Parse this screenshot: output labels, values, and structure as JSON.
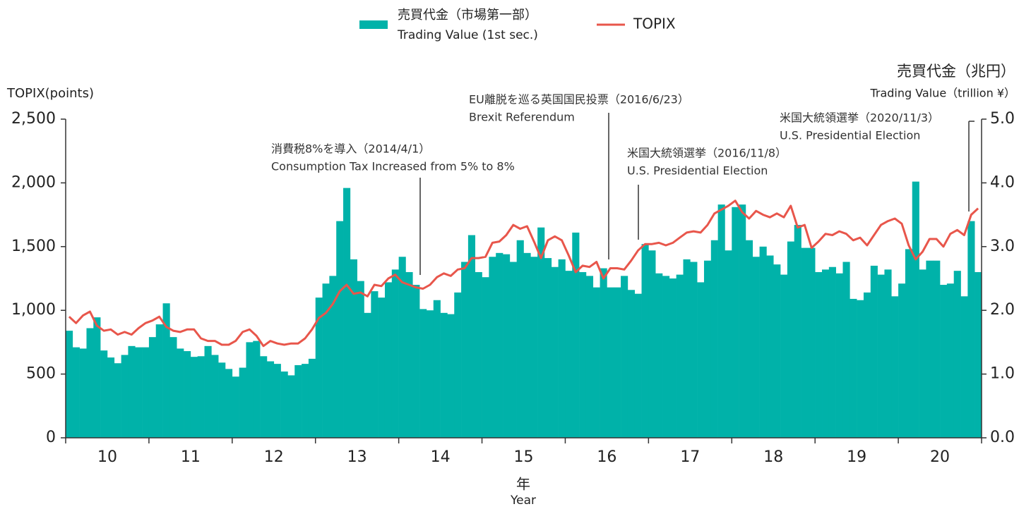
{
  "chart_data": {
    "type": "bar-line",
    "xlabel": "年",
    "xlabel_en": "Year",
    "ylabel": "TOPIX(points)",
    "y2label": "売買代金（兆円）",
    "y2label_en": "Trading Value（trillion ¥）",
    "years": [
      "10",
      "11",
      "12",
      "13",
      "14",
      "15",
      "16",
      "17",
      "18",
      "19",
      "20"
    ],
    "ylim": [
      0,
      2500
    ],
    "yticks": [
      0,
      500,
      {
        "value": 1000,
        "label": "1,000"
      },
      {
        "value": 1500,
        "label": "1,500"
      },
      {
        "value": 2000,
        "label": "2,000"
      },
      {
        "value": 2500,
        "label": "2,500"
      }
    ],
    "y2lim": [
      0,
      5
    ],
    "y2ticks": [
      {
        "value": 0,
        "label": "0.0"
      },
      {
        "value": 1,
        "label": "1.0"
      },
      {
        "value": 2,
        "label": "2.0"
      },
      {
        "value": 3,
        "label": "3.0"
      },
      {
        "value": 4,
        "label": "4.0"
      },
      {
        "value": 5,
        "label": "5.0"
      }
    ],
    "series": [
      {
        "name": "売買代金（市場第一部）",
        "name_en": "Trading Value (1st sec.)",
        "kind": "bar",
        "axis": "y2",
        "color": "#00b2a9",
        "values": [
          1.68,
          1.42,
          1.4,
          1.72,
          1.89,
          1.37,
          1.26,
          1.17,
          1.3,
          1.44,
          1.42,
          1.42,
          1.58,
          1.78,
          2.11,
          1.58,
          1.4,
          1.36,
          1.27,
          1.28,
          1.44,
          1.3,
          1.18,
          1.08,
          0.96,
          1.1,
          1.5,
          1.52,
          1.28,
          1.2,
          1.16,
          1.04,
          0.98,
          1.14,
          1.16,
          1.24,
          2.2,
          2.42,
          2.54,
          3.4,
          3.92,
          2.8,
          2.46,
          1.96,
          2.3,
          2.2,
          2.44,
          2.64,
          2.84,
          2.6,
          2.4,
          2.02,
          2.0,
          2.16,
          1.96,
          1.94,
          2.28,
          2.76,
          3.18,
          2.6,
          2.52,
          2.84,
          2.9,
          2.88,
          2.76,
          3.1,
          2.9,
          2.84,
          3.3,
          2.82,
          2.68,
          2.8,
          2.62,
          3.22,
          2.6,
          2.54,
          2.36,
          2.66,
          2.36,
          2.36,
          2.54,
          2.32,
          2.26,
          3.04,
          2.94,
          2.58,
          2.54,
          2.5,
          2.56,
          2.8,
          2.76,
          2.44,
          2.78,
          3.1,
          3.66,
          2.94,
          3.62,
          3.66,
          3.1,
          2.84,
          3.0,
          2.86,
          2.72,
          2.56,
          3.08,
          3.34,
          2.98,
          2.98,
          2.6,
          2.64,
          2.68,
          2.58,
          2.76,
          2.18,
          2.16,
          2.28,
          2.7,
          2.56,
          2.64,
          2.22,
          2.42,
          2.96,
          4.02,
          2.64,
          2.78,
          2.78,
          2.4,
          2.42,
          2.62,
          2.22,
          3.4,
          2.6
        ]
      },
      {
        "name": "TOPIX",
        "kind": "line",
        "axis": "y",
        "color": "#e8564b",
        "values": [
          950,
          900,
          960,
          990,
          880,
          840,
          850,
          810,
          830,
          810,
          860,
          900,
          920,
          950,
          870,
          840,
          830,
          850,
          850,
          780,
          760,
          760,
          730,
          730,
          760,
          830,
          850,
          800,
          720,
          760,
          740,
          730,
          740,
          740,
          780,
          850,
          940,
          980,
          1050,
          1150,
          1200,
          1130,
          1140,
          1110,
          1200,
          1190,
          1250,
          1280,
          1220,
          1200,
          1180,
          1170,
          1200,
          1260,
          1290,
          1270,
          1320,
          1330,
          1410,
          1410,
          1420,
          1530,
          1540,
          1590,
          1670,
          1640,
          1660,
          1540,
          1410,
          1550,
          1580,
          1550,
          1430,
          1300,
          1350,
          1340,
          1380,
          1250,
          1330,
          1330,
          1320,
          1390,
          1470,
          1520,
          1520,
          1530,
          1510,
          1530,
          1570,
          1610,
          1620,
          1610,
          1670,
          1760,
          1790,
          1820,
          1860,
          1770,
          1720,
          1780,
          1750,
          1730,
          1760,
          1730,
          1820,
          1650,
          1670,
          1490,
          1540,
          1600,
          1590,
          1620,
          1600,
          1550,
          1570,
          1510,
          1590,
          1670,
          1700,
          1720,
          1680,
          1510,
          1400,
          1460,
          1560,
          1560,
          1500,
          1600,
          1630,
          1590,
          1750,
          1800
        ]
      }
    ],
    "annotations": [
      {
        "text": "消費税8%を導入（2014/4/1）",
        "text_en": "Consumption Tax  Increased from 5% to 8%"
      },
      {
        "text": "EU離脱を巡る英国国民投票（2016/6/23）",
        "text_en": "Brexit Referendum"
      },
      {
        "text": "米国大統領選挙（2016/11/8）",
        "text_en": "U.S. Presidential Election"
      },
      {
        "text": "米国大統領選挙（2020/11/3）",
        "text_en": "U.S. Presidential Election"
      }
    ]
  }
}
